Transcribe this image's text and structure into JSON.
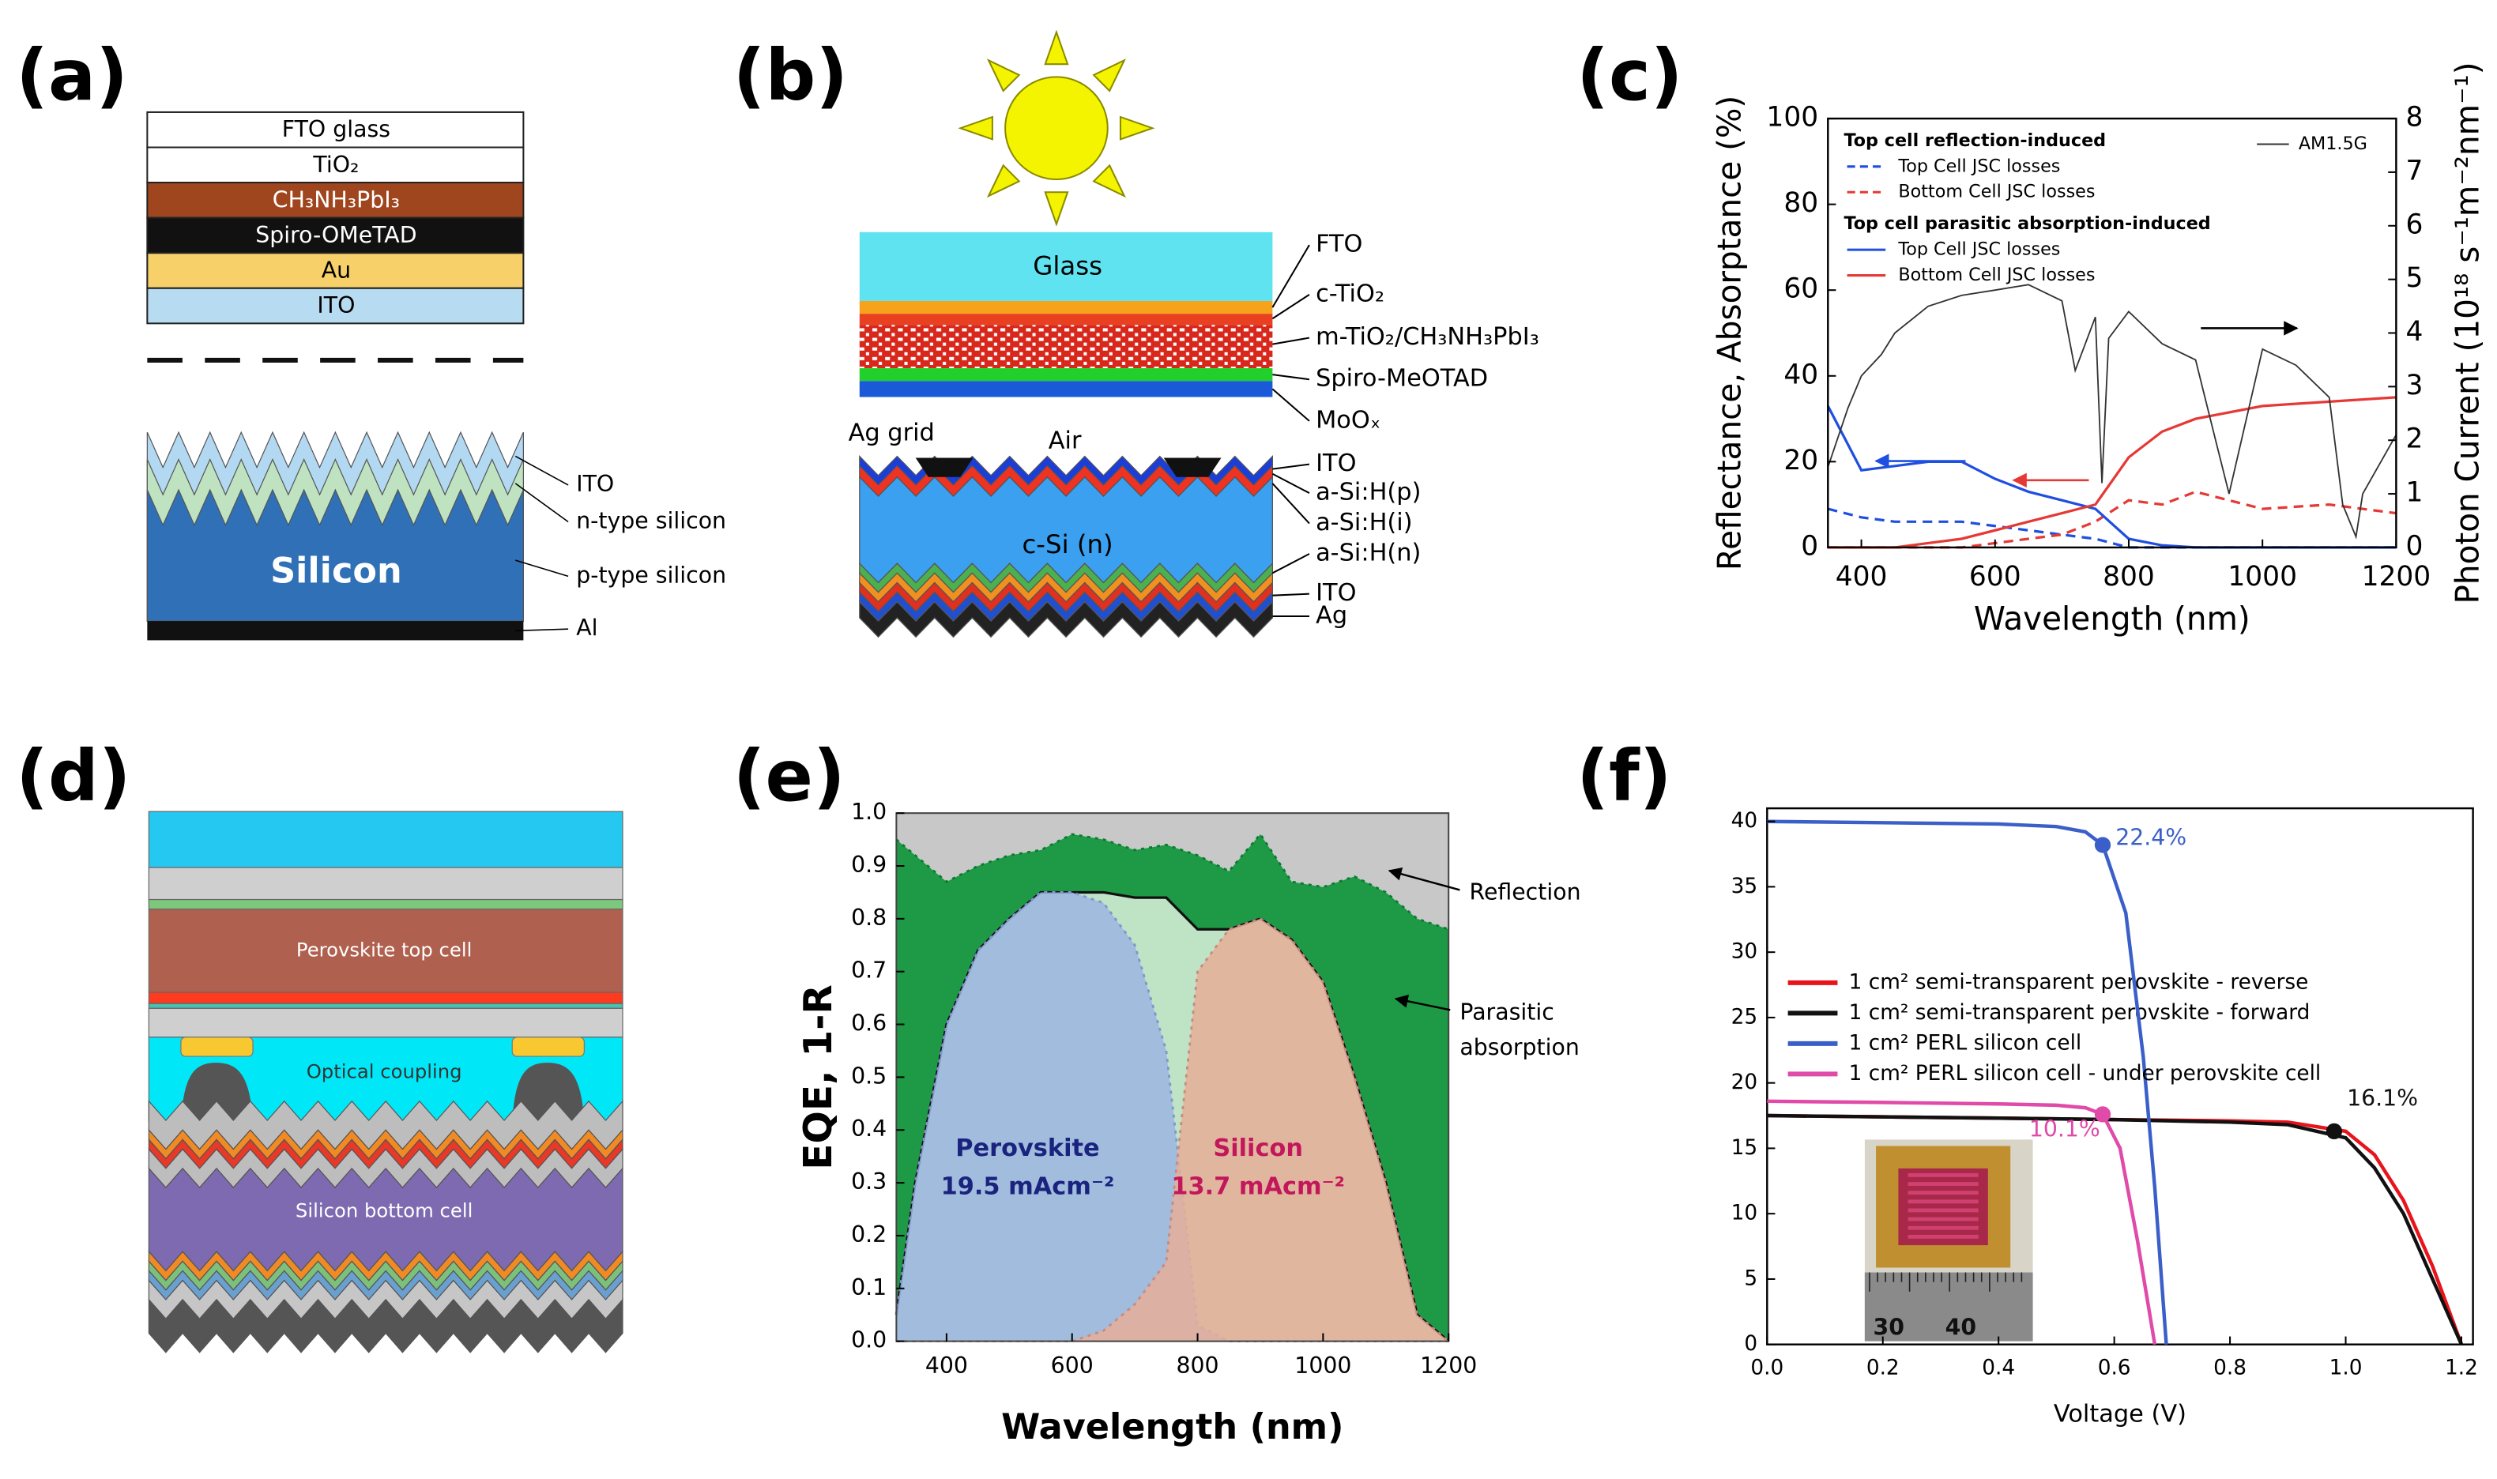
{
  "panel_a": {
    "label": "(a)",
    "perovskite_layers": [
      "FTO glass",
      "TiO₂",
      "CH₃NH₃PbI₃",
      "Spiro-OMeTAD",
      "Au",
      "ITO"
    ],
    "silicon_title": "Silicon",
    "silicon_layers": [
      "ITO",
      "n-type silicon",
      "p-type silicon",
      "Al"
    ]
  },
  "panel_b": {
    "label": "(b)",
    "glass": "Glass",
    "top_layers": [
      "FTO",
      "c-TiO₂",
      "m-TiO₂/CH₃NH₃PbI₃",
      "Spiro-MeOTAD",
      "MoOₓ"
    ],
    "grid": "Ag grid",
    "air": "Air",
    "substrate": "c-Si (n)",
    "bottom_layers": [
      "ITO",
      "a-Si:H(p)",
      "a-Si:H(i)",
      "a-Si:H(n)",
      "ITO",
      "Ag"
    ]
  },
  "panel_c": {
    "label": "(c)",
    "chart_data": {
      "type": "line",
      "x": [
        350,
        400,
        450,
        500,
        550,
        600,
        650,
        700,
        750,
        800,
        850,
        900,
        1000,
        1100,
        1200
      ],
      "xlim": [
        350,
        1200
      ],
      "xticks": [
        400,
        600,
        800,
        1000,
        1200
      ],
      "ylim": [
        0,
        100
      ],
      "yticks": [
        0,
        20,
        40,
        60,
        80,
        100
      ],
      "y2lim": [
        0,
        8
      ],
      "y2ticks": [
        0,
        1,
        2,
        3,
        4,
        5,
        6,
        7,
        8
      ],
      "x_label": "Wavelength (nm)",
      "y_label": "Reflectance, Absorptance (%)",
      "y2_label": "Photon Current (10¹⁸ s⁻¹m⁻²nm⁻¹)",
      "legend_groups": [
        "Top cell reflection-induced",
        "Top cell parasitic absorption-induced"
      ],
      "series": [
        {
          "name": "Top Cell JSC losses",
          "color": "#1f4fe0",
          "dash": true,
          "values": [
            9,
            7,
            6,
            6,
            6,
            5,
            4,
            3,
            2,
            0,
            0,
            0,
            0,
            0,
            0
          ]
        },
        {
          "name": "Bottom Cell JSC losses",
          "color": "#e53935",
          "dash": true,
          "values": [
            0,
            0,
            0,
            0,
            0,
            1,
            2,
            3,
            6,
            11,
            10,
            13,
            9,
            10,
            8
          ]
        },
        {
          "name": "Top Cell JSC losses",
          "color": "#1f4fe0",
          "dash": false,
          "values": [
            33,
            18,
            19,
            20,
            20,
            16,
            13,
            11,
            9,
            2,
            0.5,
            0,
            0,
            0,
            0
          ]
        },
        {
          "name": "Bottom Cell JSC losses",
          "color": "#e53935",
          "dash": false,
          "values": [
            0,
            0,
            0,
            1,
            2,
            4,
            6,
            8,
            10,
            21,
            27,
            30,
            33,
            34,
            35
          ]
        },
        {
          "name": "AM1.5G",
          "color": "#333333",
          "dash": false,
          "axis": "y2",
          "x": [
            350,
            380,
            400,
            430,
            450,
            500,
            550,
            600,
            650,
            700,
            720,
            750,
            760,
            770,
            800,
            850,
            900,
            930,
            950,
            1000,
            1050,
            1100,
            1120,
            1140,
            1150,
            1200
          ],
          "values": [
            1.5,
            2.6,
            3.2,
            3.6,
            4.0,
            4.5,
            4.7,
            4.8,
            4.9,
            4.6,
            3.3,
            4.3,
            1.2,
            3.9,
            4.4,
            3.8,
            3.5,
            2.0,
            1.0,
            3.7,
            3.4,
            2.8,
            0.8,
            0.2,
            1.0,
            2.1
          ]
        }
      ]
    }
  },
  "panel_d": {
    "label": "(d)",
    "layers": [
      "Perovskite top cell",
      "Optical coupling",
      "Silicon bottom cell"
    ]
  },
  "panel_e": {
    "label": "(e)",
    "chart_data": {
      "type": "area",
      "x": [
        320,
        350,
        400,
        450,
        500,
        550,
        600,
        650,
        700,
        750,
        800,
        850,
        900,
        950,
        1000,
        1050,
        1100,
        1150,
        1200
      ],
      "xlim": [
        320,
        1200
      ],
      "xticks": [
        400,
        600,
        800,
        1000,
        1200
      ],
      "ylim": [
        0,
        1
      ],
      "yticks": [
        {
          "value": 0,
          "label": "0.0"
        },
        0.1,
        0.2,
        0.3,
        0.4,
        0.5,
        0.6,
        0.7,
        0.8,
        0.9,
        {
          "value": 1,
          "label": "1.0"
        }
      ],
      "x_label": "Wavelength (nm)",
      "y_label": "EQE, 1-R",
      "background": "#c8c8c8",
      "series": [
        {
          "color": "#1e9a46",
          "line_color": "#0b7d33",
          "values": [
            0.95,
            0.92,
            0.87,
            0.9,
            0.92,
            0.93,
            0.96,
            0.95,
            0.93,
            0.94,
            0.92,
            0.89,
            0.96,
            0.87,
            0.86,
            0.88,
            0.85,
            0.8,
            0.78
          ]
        },
        {
          "color": "#bfe3c5",
          "line_color": "#111111",
          "values": [
            0.05,
            0.3,
            0.6,
            0.74,
            0.8,
            0.85,
            0.85,
            0.85,
            0.84,
            0.84,
            0.78,
            0.78,
            0.8,
            0.76,
            0.68,
            0.5,
            0.3,
            0.05,
            0
          ]
        },
        {
          "name": "Perovskite",
          "current": "19.5 mAcm⁻²",
          "color": "#9bb5e0",
          "line_color": "#7d97d0",
          "label_color": "#1a237e",
          "values": [
            0.05,
            0.3,
            0.6,
            0.74,
            0.8,
            0.85,
            0.85,
            0.83,
            0.75,
            0.55,
            0.03,
            0,
            0,
            0,
            0,
            0,
            0,
            0,
            0
          ]
        },
        {
          "name": "Silicon",
          "current": "13.7 mAcm⁻²",
          "color": "#e6ae98",
          "line_color": "#c98a80",
          "label_color": "#c2185b",
          "values": [
            0,
            0,
            0,
            0,
            0,
            0,
            0,
            0.02,
            0.07,
            0.15,
            0.7,
            0.78,
            0.8,
            0.76,
            0.68,
            0.5,
            0.3,
            0.05,
            0
          ]
        }
      ],
      "annotations": [
        {
          "text": [
            "Reflection"
          ]
        },
        {
          "text": [
            "Parasitic",
            "absorption"
          ]
        }
      ]
    }
  },
  "panel_f": {
    "label": "(f)",
    "chart_data": {
      "type": "line",
      "xlim": [
        0,
        1.22
      ],
      "xticks": [
        {
          "value": 0,
          "label": "0.0"
        },
        0.2,
        0.4,
        0.6,
        0.8,
        {
          "value": 1,
          "label": "1.0"
        },
        1.2
      ],
      "ylim": [
        0,
        41
      ],
      "yticks": [
        0,
        5,
        10,
        15,
        20,
        25,
        30,
        35,
        40
      ],
      "x_label": "Voltage (V)",
      "series": [
        {
          "name": "1 cm² semi-transparent perovskite - reverse",
          "color": "#e8141c",
          "x": [
            0,
            0.2,
            0.4,
            0.6,
            0.8,
            0.9,
            1.0,
            1.05,
            1.1,
            1.15,
            1.2
          ],
          "values": [
            17.5,
            17.4,
            17.3,
            17.2,
            17.1,
            17.0,
            16.3,
            14.5,
            11,
            6,
            0
          ]
        },
        {
          "name": "1 cm² semi-transparent perovskite - forward",
          "color": "#111111",
          "x": [
            0,
            0.2,
            0.4,
            0.6,
            0.8,
            0.9,
            1.0,
            1.05,
            1.1,
            1.15,
            1.2
          ],
          "values": [
            17.5,
            17.4,
            17.3,
            17.2,
            17.0,
            16.8,
            15.8,
            13.5,
            10,
            5,
            0
          ]
        },
        {
          "name": "1 cm² PERL silicon cell",
          "color": "#3a5fc8",
          "x": [
            0,
            0.2,
            0.4,
            0.5,
            0.55,
            0.58,
            0.62,
            0.65,
            0.67,
            0.69
          ],
          "values": [
            40,
            39.9,
            39.8,
            39.6,
            39.2,
            38.2,
            33,
            22,
            12,
            0
          ]
        },
        {
          "name": "1 cm² PERL silicon cell - under perovskite cell",
          "color": "#e04aa8",
          "x": [
            0,
            0.2,
            0.4,
            0.5,
            0.55,
            0.58,
            0.61,
            0.64,
            0.67
          ],
          "values": [
            18.6,
            18.5,
            18.4,
            18.3,
            18.1,
            17.6,
            15,
            8,
            0
          ]
        }
      ],
      "annotations": [
        {
          "text": "22.4%",
          "x": 0.58,
          "y": 38.2,
          "color": "#3a5fc8"
        },
        {
          "text": "16.1%",
          "x": 0.98,
          "y": 16.3,
          "color": "#111111"
        },
        {
          "text": "10.1%",
          "x": 0.58,
          "y": 17.6,
          "color": "#e04aa8"
        }
      ],
      "inset_labels": [
        "30",
        "40"
      ]
    }
  }
}
